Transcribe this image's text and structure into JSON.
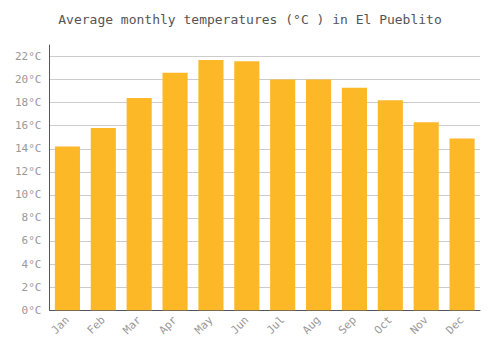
{
  "chart_data": {
    "type": "bar",
    "title": "Average monthly temperatures (°C ) in El Pueblito",
    "categories": [
      "Jan",
      "Feb",
      "Mar",
      "Apr",
      "May",
      "Jun",
      "Jul",
      "Aug",
      "Sep",
      "Oct",
      "Nov",
      "Dec"
    ],
    "values": [
      14.2,
      15.8,
      18.4,
      20.6,
      21.7,
      21.6,
      20.0,
      20.0,
      19.3,
      18.2,
      16.3,
      14.9
    ],
    "color": "#FDB827",
    "ylim": [
      0,
      23
    ],
    "yticks": [
      {
        "value": 0,
        "label": "0°C"
      },
      {
        "value": 2,
        "label": "2°C"
      },
      {
        "value": 4,
        "label": "4°C"
      },
      {
        "value": 6,
        "label": "6°C"
      },
      {
        "value": 8,
        "label": "8°C"
      },
      {
        "value": 10,
        "label": "10°C"
      },
      {
        "value": 12,
        "label": "12°C"
      },
      {
        "value": 14,
        "label": "14°C"
      },
      {
        "value": 16,
        "label": "16°C"
      },
      {
        "value": 18,
        "label": "18°C"
      },
      {
        "value": 20,
        "label": "20°C"
      },
      {
        "value": 22,
        "label": "22°C"
      }
    ],
    "grid": true
  }
}
